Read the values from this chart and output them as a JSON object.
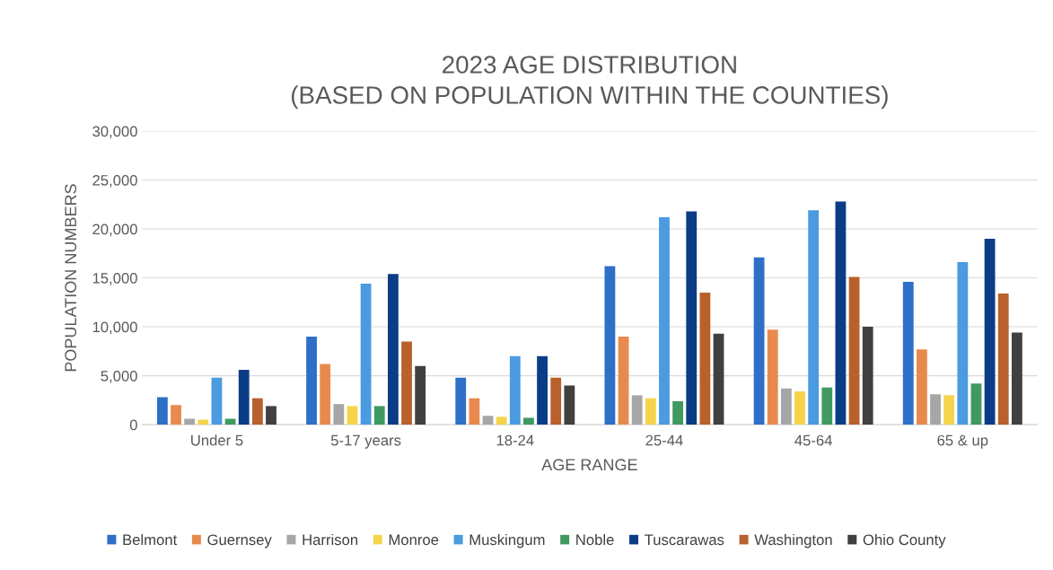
{
  "chart_data": {
    "type": "bar",
    "title": "2023 AGE DISTRIBUTION\n(BASED ON POPULATION WITHIN THE COUNTIES)",
    "xlabel": "AGE RANGE",
    "ylabel": "POPULATION NUMBERS",
    "categories": [
      "Under 5",
      "5-17 years",
      "18-24",
      "25-44",
      "45-64",
      "65 & up"
    ],
    "series": [
      {
        "name": "Belmont",
        "color": "#2e6fc7",
        "values": [
          2800,
          9000,
          4800,
          16200,
          17100,
          14600
        ]
      },
      {
        "name": "Guernsey",
        "color": "#e88a4e",
        "values": [
          2000,
          6200,
          2700,
          9000,
          9700,
          7700
        ]
      },
      {
        "name": "Harrison",
        "color": "#a6a6a6",
        "values": [
          600,
          2100,
          900,
          3000,
          3700,
          3100
        ]
      },
      {
        "name": "Monroe",
        "color": "#f5d44a",
        "values": [
          500,
          1900,
          800,
          2700,
          3400,
          3000
        ]
      },
      {
        "name": "Muskingum",
        "color": "#4a9be0",
        "values": [
          4800,
          14400,
          7000,
          21200,
          21900,
          16600
        ]
      },
      {
        "name": "Noble",
        "color": "#3f9a62",
        "values": [
          600,
          1900,
          700,
          2400,
          3800,
          4200
        ]
      },
      {
        "name": "Tuscarawas",
        "color": "#0a3d86",
        "values": [
          5600,
          15400,
          7000,
          21800,
          22800,
          19000
        ]
      },
      {
        "name": "Washington",
        "color": "#b8612c",
        "values": [
          2700,
          8500,
          4800,
          13500,
          15100,
          13400
        ]
      },
      {
        "name": "Ohio County",
        "color": "#404040",
        "values": [
          1900,
          6000,
          4000,
          9300,
          10000,
          9400
        ]
      }
    ],
    "ylim": [
      0,
      30000
    ],
    "yticks": [
      {
        "value": 0,
        "label": "0"
      },
      {
        "value": 5000,
        "label": "5,000"
      },
      {
        "value": 10000,
        "label": "10,000"
      },
      {
        "value": 15000,
        "label": "15,000"
      },
      {
        "value": 20000,
        "label": "20,000"
      },
      {
        "value": 25000,
        "label": "25,000"
      },
      {
        "value": 30000,
        "label": "30,000"
      }
    ],
    "grid": "y",
    "legend": "bottom"
  }
}
